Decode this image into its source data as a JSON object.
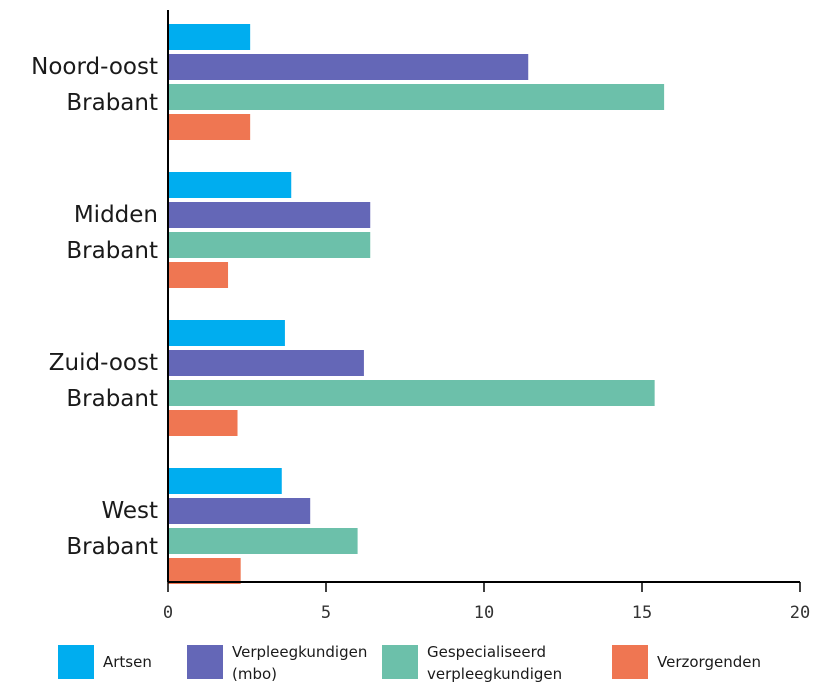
{
  "chart_data": {
    "type": "bar",
    "orientation": "horizontal",
    "title": "",
    "xlabel": "",
    "ylabel": "",
    "categories": [
      [
        "Noord-oost",
        "Brabant"
      ],
      [
        "Midden",
        "Brabant"
      ],
      [
        "Zuid-oost",
        "Brabant"
      ],
      [
        "West",
        "Brabant"
      ]
    ],
    "series": [
      {
        "name": [
          "Artsen"
        ],
        "color": "#00adef",
        "values": [
          2.6,
          3.9,
          3.7,
          3.6
        ]
      },
      {
        "name": [
          "Verpleegkundigen",
          "(mbo)"
        ],
        "color": "#6467b7",
        "values": [
          11.4,
          6.4,
          6.2,
          4.5
        ]
      },
      {
        "name": [
          "Gespecialiseerd",
          "verpleegkundigen"
        ],
        "color": "#6cc0aa",
        "values": [
          15.7,
          6.4,
          15.4,
          6.0
        ]
      },
      {
        "name": [
          "Verzorgenden"
        ],
        "color": "#ef7652",
        "values": [
          2.6,
          1.9,
          2.2,
          2.3
        ]
      }
    ],
    "xlim": [
      0,
      20
    ],
    "xticks": [
      0,
      5,
      10,
      15,
      20
    ],
    "grid": false,
    "legend_position": "bottom"
  }
}
